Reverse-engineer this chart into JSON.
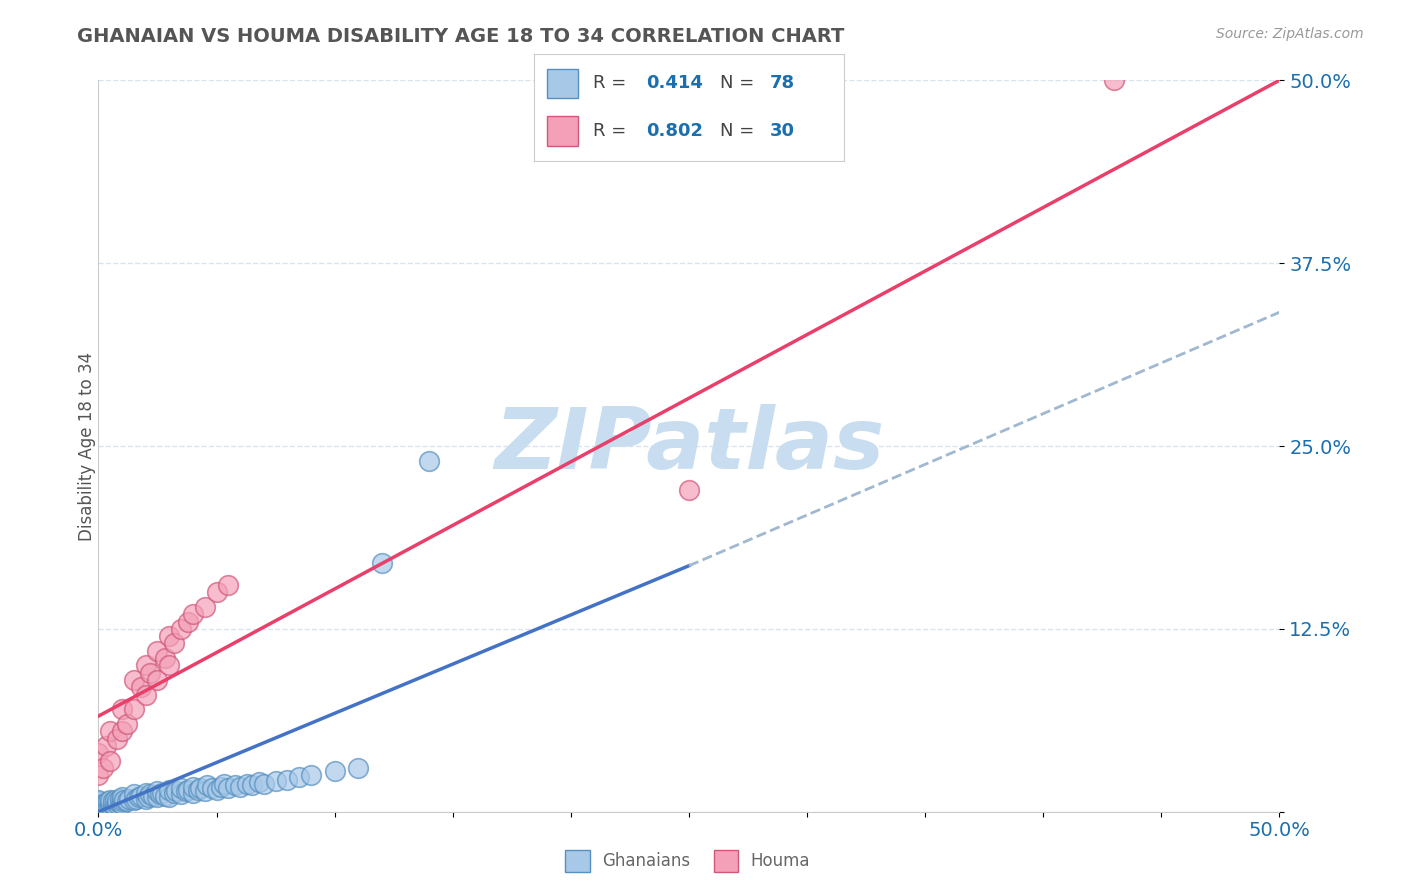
{
  "title": "GHANAIAN VS HOUMA DISABILITY AGE 18 TO 34 CORRELATION CHART",
  "source_text": "Source: ZipAtlas.com",
  "ylabel": "Disability Age 18 to 34",
  "xlim": [
    0.0,
    0.5
  ],
  "ylim": [
    0.0,
    0.5
  ],
  "yticks": [
    0.0,
    0.125,
    0.25,
    0.375,
    0.5
  ],
  "ytick_labels": [
    "",
    "12.5%",
    "25.0%",
    "37.5%",
    "50.0%"
  ],
  "xtick_labels_show": [
    "0.0%",
    "50.0%"
  ],
  "ghanaians_color": "#a8c8e8",
  "ghanaians_edge": "#5590c0",
  "houma_color": "#f4a0b8",
  "houma_edge": "#d05878",
  "ghanaian_line_color": "#4472c4",
  "houma_line_color": "#e8406a",
  "dashed_line_color": "#a0b8d0",
  "R_ghanaian": 0.414,
  "N_ghanaian": 78,
  "R_houma": 0.802,
  "N_houma": 30,
  "legend_text_color": "#1a6faf",
  "watermark": "ZIPatlas",
  "watermark_color": "#c8def0",
  "background_color": "#ffffff",
  "grid_color": "#d8e4f0",
  "title_color": "#555555",
  "ylabel_color": "#555555",
  "source_color": "#999999",
  "ghanaians_x": [
    0.0,
    0.0,
    0.0,
    0.0,
    0.0,
    0.0,
    0.0,
    0.002,
    0.002,
    0.003,
    0.003,
    0.004,
    0.004,
    0.005,
    0.005,
    0.005,
    0.006,
    0.006,
    0.007,
    0.007,
    0.008,
    0.008,
    0.009,
    0.009,
    0.01,
    0.01,
    0.01,
    0.011,
    0.012,
    0.013,
    0.015,
    0.015,
    0.016,
    0.017,
    0.018,
    0.02,
    0.02,
    0.021,
    0.022,
    0.023,
    0.025,
    0.025,
    0.026,
    0.027,
    0.028,
    0.03,
    0.03,
    0.032,
    0.033,
    0.035,
    0.035,
    0.037,
    0.038,
    0.04,
    0.04,
    0.042,
    0.043,
    0.045,
    0.046,
    0.048,
    0.05,
    0.052,
    0.053,
    0.055,
    0.058,
    0.06,
    0.063,
    0.065,
    0.068,
    0.07,
    0.075,
    0.08,
    0.085,
    0.09,
    0.1,
    0.11,
    0.12,
    0.14
  ],
  "ghanaians_y": [
    0.0,
    0.002,
    0.004,
    0.005,
    0.006,
    0.007,
    0.008,
    0.003,
    0.005,
    0.004,
    0.006,
    0.003,
    0.007,
    0.004,
    0.006,
    0.008,
    0.005,
    0.007,
    0.004,
    0.008,
    0.005,
    0.007,
    0.006,
    0.009,
    0.005,
    0.007,
    0.01,
    0.008,
    0.007,
    0.009,
    0.008,
    0.012,
    0.009,
    0.01,
    0.011,
    0.009,
    0.013,
    0.01,
    0.012,
    0.011,
    0.01,
    0.014,
    0.012,
    0.013,
    0.011,
    0.01,
    0.015,
    0.013,
    0.014,
    0.012,
    0.016,
    0.014,
    0.015,
    0.013,
    0.017,
    0.015,
    0.016,
    0.014,
    0.018,
    0.016,
    0.015,
    0.017,
    0.019,
    0.016,
    0.018,
    0.017,
    0.019,
    0.018,
    0.02,
    0.019,
    0.021,
    0.022,
    0.024,
    0.025,
    0.028,
    0.03,
    0.17,
    0.24
  ],
  "houma_x": [
    0.0,
    0.0,
    0.002,
    0.003,
    0.005,
    0.005,
    0.008,
    0.01,
    0.01,
    0.012,
    0.015,
    0.015,
    0.018,
    0.02,
    0.02,
    0.022,
    0.025,
    0.025,
    0.028,
    0.03,
    0.03,
    0.032,
    0.035,
    0.038,
    0.04,
    0.045,
    0.05,
    0.055,
    0.25,
    0.43
  ],
  "houma_y": [
    0.025,
    0.04,
    0.03,
    0.045,
    0.035,
    0.055,
    0.05,
    0.055,
    0.07,
    0.06,
    0.07,
    0.09,
    0.085,
    0.08,
    0.1,
    0.095,
    0.09,
    0.11,
    0.105,
    0.1,
    0.12,
    0.115,
    0.125,
    0.13,
    0.135,
    0.14,
    0.15,
    0.155,
    0.22,
    0.5
  ]
}
